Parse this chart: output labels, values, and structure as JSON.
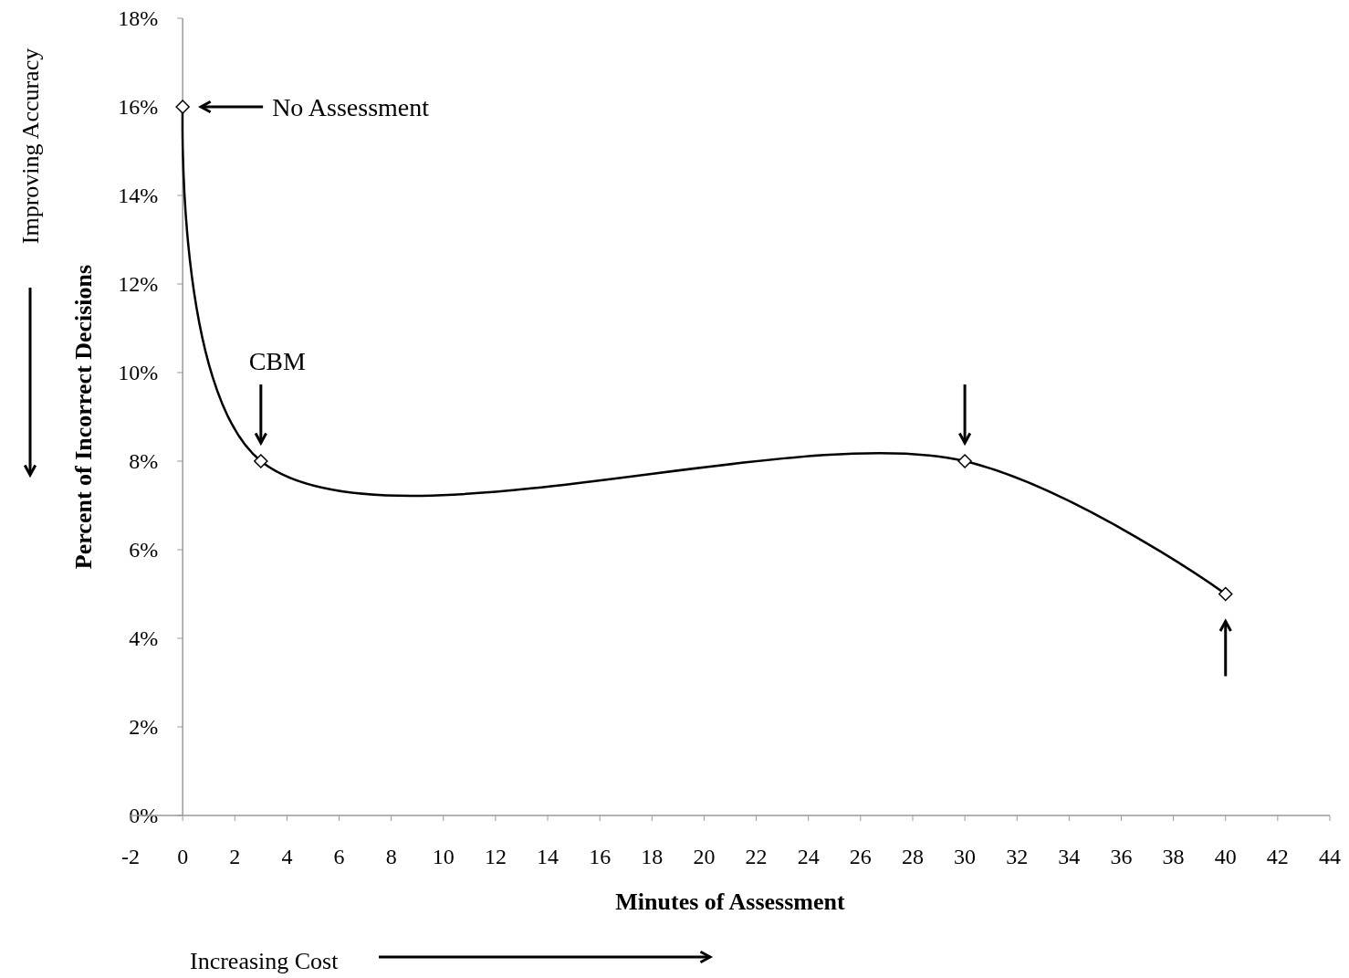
{
  "chart_data": {
    "type": "line",
    "xlabel": "Minutes of Assessment",
    "ylabel": "Percent of Incorrect Decisions",
    "x": [
      0,
      3,
      30,
      40
    ],
    "series": [
      {
        "color": "#000000",
        "values": [
          16,
          8,
          8,
          5
        ]
      }
    ],
    "xlim": [
      -2,
      44
    ],
    "xticks": [
      -2,
      0,
      2,
      4,
      6,
      8,
      10,
      12,
      14,
      16,
      18,
      20,
      22,
      24,
      26,
      28,
      30,
      32,
      34,
      36,
      38,
      40,
      42,
      44
    ],
    "ylim": [
      0,
      18
    ],
    "yticks": [
      {
        "value": 0,
        "label": "0%"
      },
      {
        "value": 2,
        "label": "2%"
      },
      {
        "value": 4,
        "label": "4%"
      },
      {
        "value": 6,
        "label": "6%"
      },
      {
        "value": 8,
        "label": "8%"
      },
      {
        "value": 10,
        "label": "10%"
      },
      {
        "value": 12,
        "label": "12%"
      },
      {
        "value": 14,
        "label": "14%"
      },
      {
        "value": 16,
        "label": "16%"
      },
      {
        "value": 18,
        "label": "18%"
      }
    ],
    "grid": false,
    "marker": "diamond",
    "line_style": "solid",
    "annotations": [
      "No Assessment",
      "CBM",
      "Improving Accuracy",
      "Increasing Cost"
    ]
  }
}
